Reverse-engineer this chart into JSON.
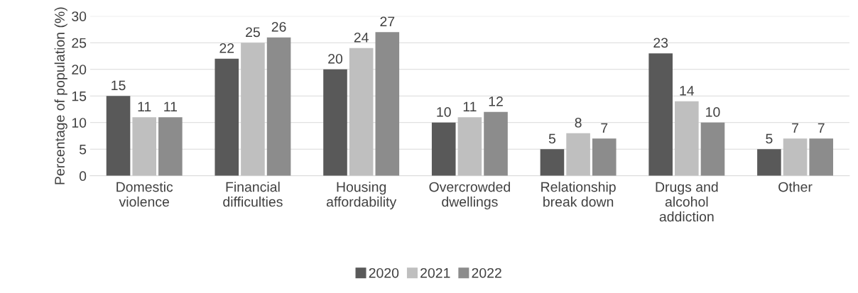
{
  "chart_data": {
    "type": "bar",
    "ylabel": "Percentage of population (%)",
    "categories": [
      "Domestic violence",
      "Financial difficulties",
      "Housing affordability",
      "Overcrowded dwellings",
      "Relationship break down",
      "Drugs and alcohol addiction",
      "Other"
    ],
    "series": [
      {
        "name": "2020",
        "color": "#595959",
        "values": [
          15,
          22,
          20,
          10,
          5,
          23,
          5
        ]
      },
      {
        "name": "2021",
        "color": "#bfbfbf",
        "values": [
          11,
          25,
          24,
          11,
          8,
          14,
          7
        ]
      },
      {
        "name": "2022",
        "color": "#8c8c8c",
        "values": [
          11,
          26,
          27,
          12,
          7,
          10,
          7
        ]
      }
    ],
    "ylim": [
      0,
      30
    ],
    "yticks": [
      0,
      5,
      10,
      15,
      20,
      25,
      30
    ],
    "grid": "y",
    "legend": "bottom",
    "data_labels": true
  }
}
